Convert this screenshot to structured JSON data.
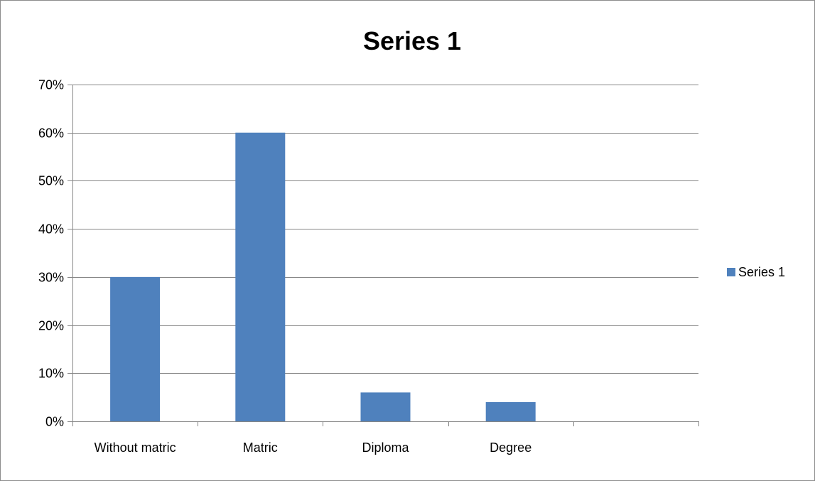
{
  "chart_data": {
    "type": "bar",
    "title": "Series 1",
    "xlabel": "",
    "ylabel": "",
    "categories": [
      "Without matric",
      "Matric",
      "Diploma",
      "Degree",
      ""
    ],
    "series": [
      {
        "name": "Series 1",
        "values": [
          0.3,
          0.6,
          0.06,
          0.04,
          null
        ],
        "color": "#4f81bd"
      }
    ],
    "ylim": [
      0,
      0.7
    ],
    "yticks": [
      0,
      0.1,
      0.2,
      0.3,
      0.4,
      0.5,
      0.6,
      0.7
    ],
    "ytick_labels": [
      "0%",
      "10%",
      "20%",
      "30%",
      "40%",
      "50%",
      "60%",
      "70%"
    ],
    "grid": true,
    "legend_position": "right",
    "gridline_color": "#868686",
    "axis_color": "#868686"
  }
}
